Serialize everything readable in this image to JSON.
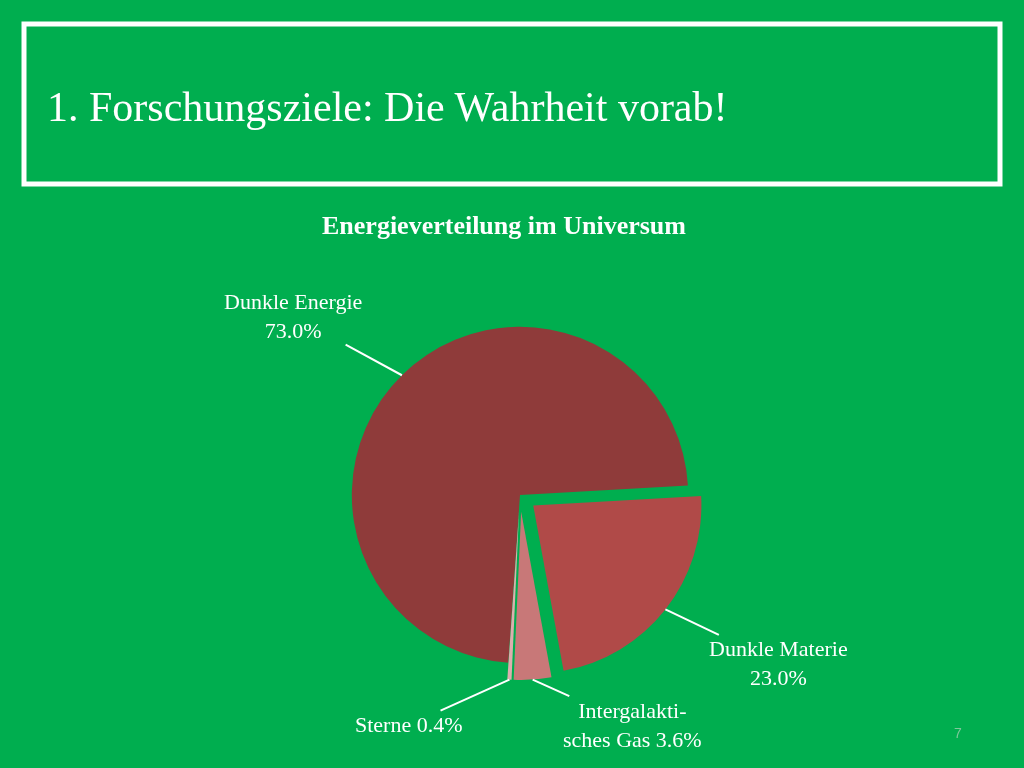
{
  "chart_data": {
    "type": "pie",
    "title": "1. Forschungsziele: Die Wahrheit vorab!",
    "subtitle": "Energieverteilung im Universum",
    "categories": [
      "Dunkle Energie",
      "Dunkle Materie",
      "Intergalakti-\nsches Gas",
      "Sterne"
    ],
    "values": [
      73.0,
      23.0,
      3.6,
      0.4
    ],
    "value_labels": [
      "73.0%",
      "23.0%",
      "3.6%",
      "0.4%"
    ],
    "colors": [
      "#8f3b3a",
      "#b04a48",
      "#c87878",
      "#dcaeae"
    ],
    "annotations": [
      "7"
    ]
  }
}
